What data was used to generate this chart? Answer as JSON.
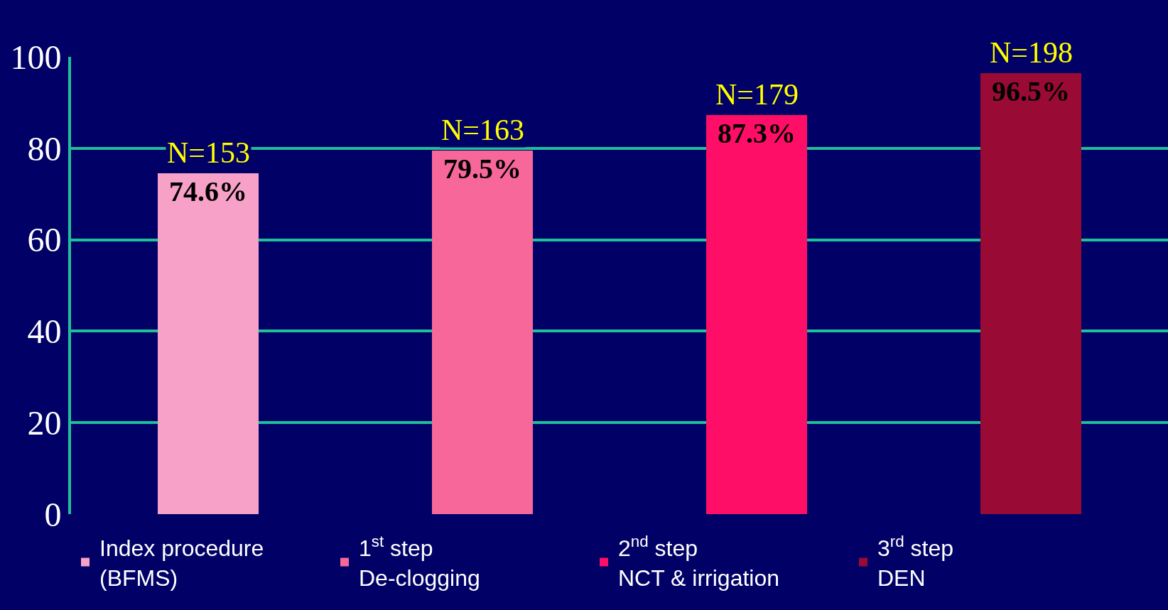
{
  "chart_data": {
    "type": "bar",
    "categories": [
      null,
      null,
      null,
      null
    ],
    "series": [
      {
        "name": "Index procedure\n(BFMS)",
        "color": "#f7a1c8",
        "values": [
          74.6,
          null,
          null,
          null
        ],
        "value_labels": [
          "74.6%",
          null,
          null,
          null
        ]
      },
      {
        "name": "1$^{st}$ step\nDe-clogging",
        "color": "#f7679a",
        "values": [
          null,
          79.5,
          null,
          null
        ],
        "value_labels": [
          null,
          "79.5%",
          null,
          null
        ]
      },
      {
        "name": "2$^{nd}$ step\nNCT & irrigation",
        "color": "#fe0e66",
        "values": [
          null,
          null,
          87.3,
          null
        ],
        "value_labels": [
          null,
          null,
          "87.3%",
          null
        ]
      },
      {
        "name": "3$^{rd}$ step\nDEN",
        "color": "#990a35",
        "values": [
          null,
          null,
          null,
          96.5
        ],
        "value_labels": [
          null,
          null,
          null,
          "96.5%"
        ]
      }
    ],
    "annotations": [
      "N=153",
      "N=163",
      "N=179",
      "N=198"
    ],
    "ylim": [
      0,
      100
    ],
    "yticks": [
      0,
      20,
      40,
      60,
      80,
      100
    ],
    "grid": "y",
    "legend": "bottom"
  }
}
